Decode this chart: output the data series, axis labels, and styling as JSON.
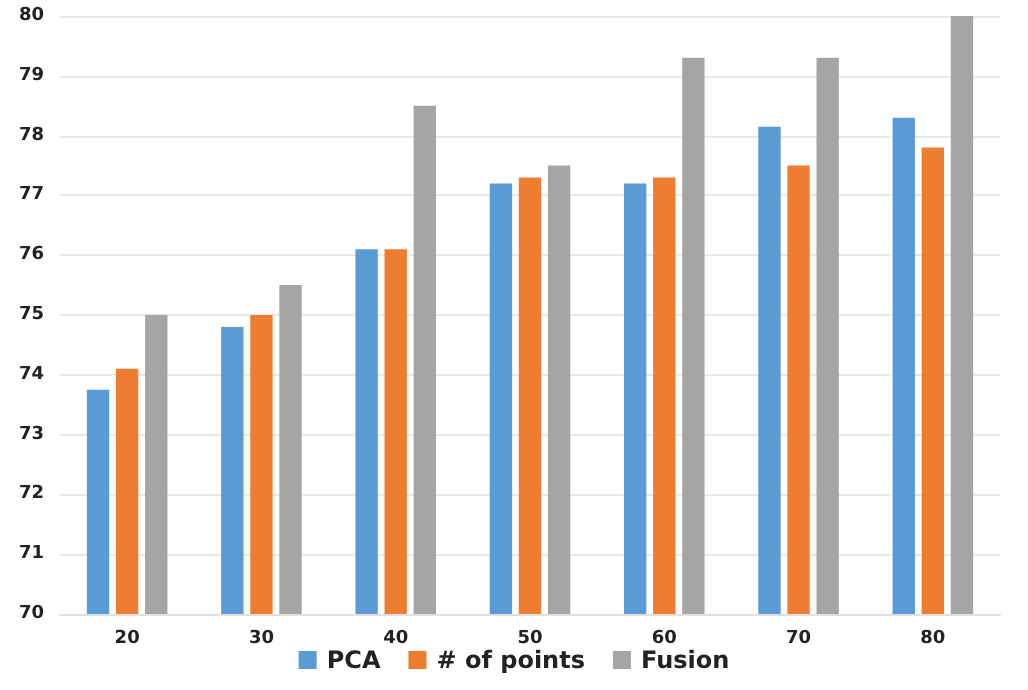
{
  "chart_data": {
    "type": "bar",
    "categories": [
      "20",
      "30",
      "40",
      "50",
      "60",
      "70",
      "80"
    ],
    "series": [
      {
        "name": "PCA",
        "color": "#5b9bd5",
        "values": [
          73.75,
          74.8,
          76.1,
          77.2,
          77.2,
          78.15,
          78.3
        ]
      },
      {
        "name": "# of points",
        "color": "#ed7d31",
        "values": [
          74.1,
          75,
          76.1,
          77.3,
          77.3,
          77.5,
          77.8
        ]
      },
      {
        "name": "Fusion",
        "color": "#a5a5a5",
        "values": [
          75,
          75.5,
          78.5,
          77.5,
          79.3,
          79.3,
          80
        ]
      }
    ],
    "ylim": [
      70,
      80
    ],
    "yticks": [
      70,
      71,
      72,
      73,
      74,
      75,
      76,
      77,
      78,
      79,
      80
    ],
    "grid": "y",
    "legend": "bottom"
  }
}
